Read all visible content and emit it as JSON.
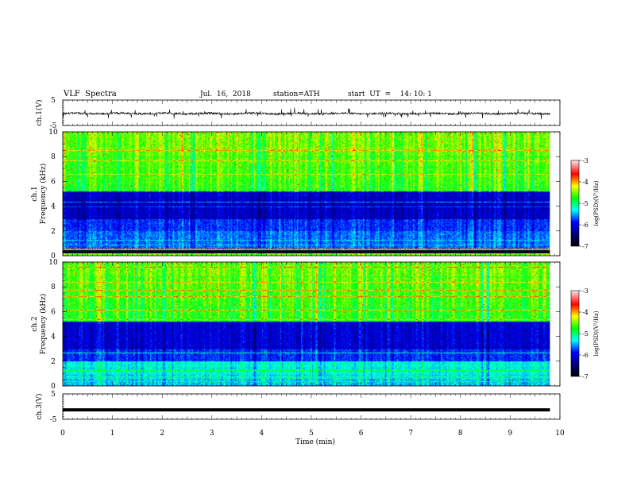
{
  "header": {
    "title": "VLF  Spectra",
    "date": "Jul.  16,  2018",
    "station": "station=ATH",
    "start": "start  UT  =    14: 10: 1"
  },
  "chart_data": [
    {
      "panel": "ch1-waveform",
      "type": "line",
      "ylabel": "ch.1(V)",
      "ytick_labels": [
        "5",
        "-5"
      ],
      "ylim": [
        -5,
        5
      ],
      "mean_level": -0.3
    },
    {
      "panel": "ch1-spectrogram",
      "type": "heatmap",
      "ylabel_top": "ch.1",
      "ylabel": "Frequency  (kHz)",
      "ytick_labels": [
        "0",
        "2",
        "4",
        "6",
        "8",
        "10"
      ],
      "ylim": [
        0,
        10
      ],
      "colorbar": {
        "label": "log(PSD)(V²/Hz)",
        "tick_labels": [
          "-3",
          "-4",
          "-5",
          "-6",
          "-7"
        ],
        "range": [
          -7,
          -3
        ]
      }
    },
    {
      "panel": "ch2-spectrogram",
      "type": "heatmap",
      "ylabel_top": "ch.2",
      "ylabel": "Frequency  (kHz)",
      "ytick_labels": [
        "0",
        "2",
        "4",
        "6",
        "8",
        "10"
      ],
      "ylim": [
        0,
        10
      ],
      "colorbar": {
        "label": "log(PSD)(V²/Hz)",
        "tick_labels": [
          "-3",
          "-4",
          "-5",
          "-6",
          "-7"
        ],
        "range": [
          -7,
          -3
        ]
      }
    },
    {
      "panel": "ch3-waveform",
      "type": "line",
      "ylabel": "ch.3(V)",
      "ytick_labels": [
        "5",
        "-5"
      ],
      "ylim": [
        -5,
        5
      ],
      "mean_level": -1.3
    }
  ],
  "xaxis": {
    "label": "Time  (min)",
    "tick_labels": [
      "0",
      "1",
      "2",
      "3",
      "4",
      "5",
      "6",
      "7",
      "8",
      "9",
      "10"
    ],
    "xlim": [
      0,
      10
    ],
    "data_end": 9.8
  },
  "colors": {
    "scale": [
      "#00006a",
      "#0000ff",
      "#00ffff",
      "#00ff00",
      "#ffff00",
      "#ff0000",
      "#ffe0e0"
    ]
  }
}
